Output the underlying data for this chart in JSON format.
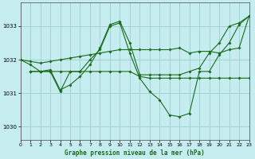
{
  "title": "Graphe pression niveau de la mer (hPa)",
  "bg_color": "#c5edf0",
  "grid_color": "#9fcfcf",
  "line_color": "#1a6b1a",
  "xlim": [
    0,
    23
  ],
  "ylim": [
    1029.6,
    1033.7
  ],
  "yticks": [
    1030,
    1031,
    1032,
    1033
  ],
  "xticks": [
    0,
    1,
    2,
    3,
    4,
    5,
    6,
    7,
    8,
    9,
    10,
    11,
    12,
    13,
    14,
    15,
    16,
    17,
    18,
    19,
    20,
    21,
    22,
    23
  ],
  "series": [
    {
      "x": [
        0,
        1,
        2,
        3,
        4,
        5,
        6,
        7,
        8,
        9,
        10,
        11,
        12,
        13,
        14,
        15,
        16,
        17,
        18,
        19,
        20,
        21,
        22,
        23
      ],
      "y": [
        1032.0,
        1031.95,
        1031.9,
        1031.95,
        1032.0,
        1032.05,
        1032.1,
        1032.15,
        1032.2,
        1032.25,
        1032.3,
        1032.3,
        1032.3,
        1032.3,
        1032.3,
        1032.3,
        1032.35,
        1032.2,
        1032.25,
        1032.25,
        1032.2,
        1032.3,
        1032.35,
        1033.3
      ]
    },
    {
      "x": [
        0,
        1,
        2,
        3,
        4,
        5,
        6,
        7,
        8,
        9,
        10,
        11,
        12,
        13,
        14,
        15,
        16,
        17,
        18,
        19,
        20,
        21,
        22,
        23
      ],
      "y": [
        1032.0,
        1031.85,
        1031.65,
        1031.7,
        1031.1,
        1031.25,
        1031.5,
        1031.85,
        1032.35,
        1033.05,
        1033.15,
        1032.5,
        1031.55,
        1031.55,
        1031.55,
        1031.55,
        1031.55,
        1031.65,
        1031.75,
        1032.2,
        1032.5,
        1033.0,
        1033.1,
        1033.3
      ]
    },
    {
      "x": [
        1,
        2,
        3,
        4,
        5,
        6,
        7,
        8,
        9,
        10,
        11,
        12,
        13,
        14,
        15,
        16,
        17,
        18,
        19,
        20,
        21,
        22,
        23
      ],
      "y": [
        1031.65,
        1031.65,
        1031.65,
        1031.05,
        1031.65,
        1031.65,
        1032.0,
        1032.3,
        1033.0,
        1033.1,
        1032.2,
        1031.45,
        1031.05,
        1030.8,
        1030.35,
        1030.3,
        1030.4,
        1031.65,
        1031.65,
        1032.15,
        1032.5,
        1033.05,
        1033.3
      ]
    },
    {
      "x": [
        1,
        2,
        3,
        4,
        5,
        6,
        7,
        8,
        9,
        10,
        11,
        12,
        13,
        14,
        15,
        16,
        17,
        18,
        19,
        20,
        21,
        22,
        23
      ],
      "y": [
        1031.65,
        1031.65,
        1031.65,
        1031.65,
        1031.65,
        1031.65,
        1031.65,
        1031.65,
        1031.65,
        1031.65,
        1031.65,
        1031.5,
        1031.45,
        1031.45,
        1031.45,
        1031.45,
        1031.45,
        1031.45,
        1031.45,
        1031.45,
        1031.45,
        1031.45,
        1031.45
      ]
    }
  ]
}
